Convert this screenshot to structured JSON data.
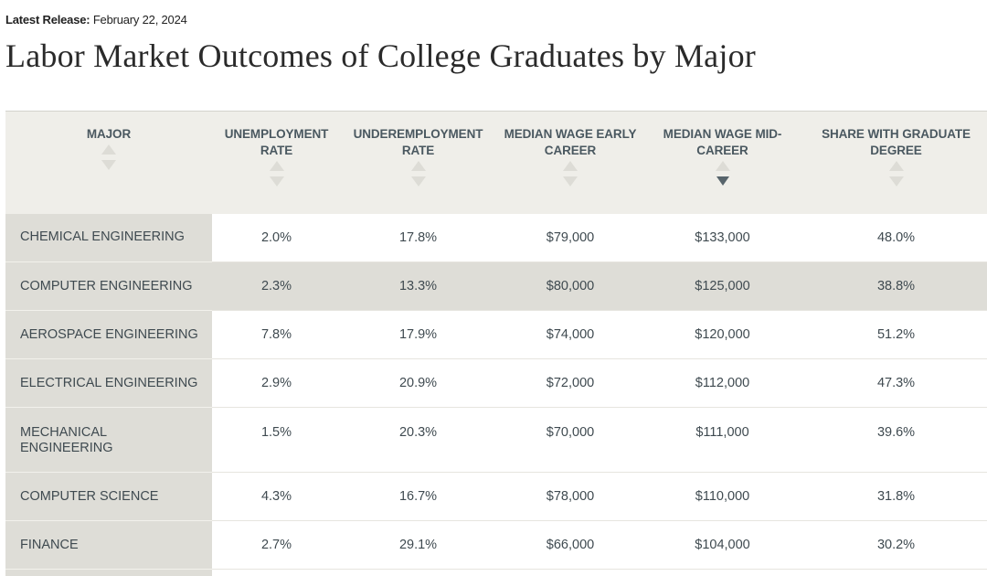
{
  "release": {
    "label": "Latest Release:",
    "date": "February 22, 2024"
  },
  "title": "Labor Market Outcomes of College Graduates by Major",
  "columns": [
    {
      "label": "MAJOR",
      "sort": "none"
    },
    {
      "label": "UNEMPLOYMENT RATE",
      "sort": "none"
    },
    {
      "label": "UNDEREMPLOYMENT RATE",
      "sort": "none"
    },
    {
      "label": "MEDIAN WAGE EARLY CAREER",
      "sort": "none"
    },
    {
      "label": "MEDIAN WAGE MID-CAREER",
      "sort": "descending"
    },
    {
      "label": "SHARE WITH GRADUATE DEGREE",
      "sort": "none"
    }
  ],
  "rows": [
    [
      "CHEMICAL ENGINEERING",
      "2.0%",
      "17.8%",
      "$79,000",
      "$133,000",
      "48.0%"
    ],
    [
      "COMPUTER ENGINEERING",
      "2.3%",
      "13.3%",
      "$80,000",
      "$125,000",
      "38.8%"
    ],
    [
      "AEROSPACE ENGINEERING",
      "7.8%",
      "17.9%",
      "$74,000",
      "$120,000",
      "51.2%"
    ],
    [
      "ELECTRICAL ENGINEERING",
      "2.9%",
      "20.9%",
      "$72,000",
      "$112,000",
      "47.3%"
    ],
    [
      "MECHANICAL ENGINEERING",
      "1.5%",
      "20.3%",
      "$70,000",
      "$111,000",
      "39.6%"
    ],
    [
      "COMPUTER SCIENCE",
      "4.3%",
      "16.7%",
      "$78,000",
      "$110,000",
      "31.8%"
    ],
    [
      "FINANCE",
      "2.7%",
      "29.1%",
      "$66,000",
      "$104,000",
      "30.2%"
    ]
  ],
  "highlighted_row": "COMPUTER ENGINEERING",
  "colors": {
    "header_bg": "#efeee9",
    "major_col_bg": "#deddd7",
    "text": "#3f4a50",
    "sort_active": "#57646b",
    "sort_inactive": "#dddcd6"
  },
  "icons": [
    "sort-ascending-icon",
    "sort-descending-icon"
  ]
}
